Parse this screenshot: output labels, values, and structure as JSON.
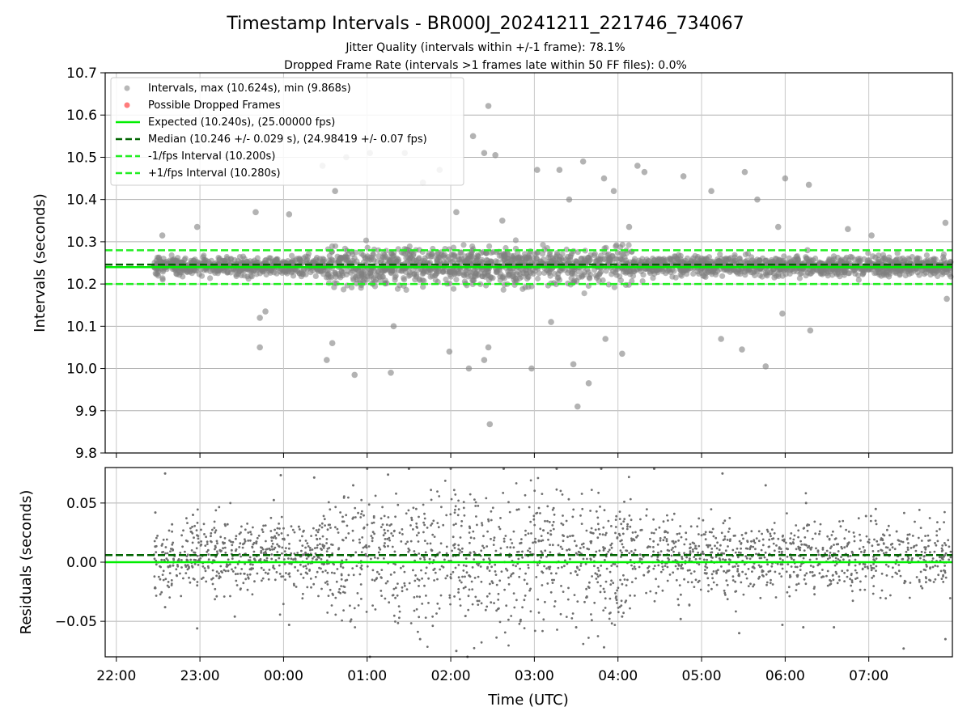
{
  "chart_data": [
    {
      "type": "scatter",
      "title": "Timestamp Intervals - BR000J_20241211_221746_734067",
      "subtitle_lines": [
        "Jitter Quality (intervals within +/-1 frame): 78.1%",
        "Dropped Frame Rate (intervals >1 frames late within 50 FF files): 0.0%"
      ],
      "ylabel": "Intervals (seconds)",
      "ylim": [
        9.8,
        10.7
      ],
      "yticks": [
        "9.8",
        "9.9",
        "10.0",
        "10.1",
        "10.2",
        "10.3",
        "10.4",
        "10.5",
        "10.6",
        "10.7"
      ],
      "grid": true,
      "legend_position": "top-left",
      "legend": [
        "Intervals, max (10.624s), min (9.868s)",
        "Possible Dropped Frames",
        "Expected (10.240s), (25.00000 fps)",
        "Median (10.246 +/- 0.029 s), (24.98419 +/- 0.07 fps)",
        "-1/fps Interval (10.200s)",
        "+1/fps Interval (10.280s)"
      ],
      "reference_lines": [
        {
          "name": "Expected",
          "y": 10.24,
          "color": "#00ee00",
          "style": "solid"
        },
        {
          "name": "Median",
          "y": 10.246,
          "color": "#006400",
          "style": "dashed"
        },
        {
          "name": "-1/fps Interval",
          "y": 10.2,
          "color": "#22ee22",
          "style": "dashed"
        },
        {
          "name": "+1/fps Interval",
          "y": 10.28,
          "color": "#22ee22",
          "style": "dashed"
        }
      ],
      "x_time_range_utc": [
        "2024-12-11T22:27",
        "2024-12-12T07:59"
      ],
      "points": [
        [
          "22:33",
          10.315
        ],
        [
          "22:58",
          10.335
        ],
        [
          "23:40",
          10.37
        ],
        [
          "23:43",
          10.05
        ],
        [
          "23:43",
          10.12
        ],
        [
          "23:47",
          10.135
        ],
        [
          "00:04",
          10.365
        ],
        [
          "00:28",
          10.48
        ],
        [
          "00:31",
          10.02
        ],
        [
          "00:35",
          10.06
        ],
        [
          "00:37",
          10.42
        ],
        [
          "00:45",
          10.5
        ],
        [
          "00:51",
          9.985
        ],
        [
          "01:02",
          10.51
        ],
        [
          "01:17",
          9.99
        ],
        [
          "01:19",
          10.1
        ],
        [
          "01:27",
          10.51
        ],
        [
          "01:40",
          10.44
        ],
        [
          "01:52",
          10.47
        ],
        [
          "01:59",
          10.04
        ],
        [
          "02:04",
          10.37
        ],
        [
          "02:13",
          10.0
        ],
        [
          "02:16",
          10.55
        ],
        [
          "02:24",
          10.02
        ],
        [
          "02:24",
          10.51
        ],
        [
          "02:27",
          10.05
        ],
        [
          "02:27",
          10.6215
        ],
        [
          "02:28",
          9.868
        ],
        [
          "02:32",
          10.505
        ],
        [
          "02:37",
          10.35
        ],
        [
          "02:58",
          10.0
        ],
        [
          "03:02",
          10.47
        ],
        [
          "03:12",
          10.11
        ],
        [
          "03:18",
          10.47
        ],
        [
          "03:25",
          10.4
        ],
        [
          "03:28",
          10.01
        ],
        [
          "03:31",
          9.91
        ],
        [
          "03:35",
          10.49
        ],
        [
          "03:39",
          9.965
        ],
        [
          "03:50",
          10.45
        ],
        [
          "03:51",
          10.07
        ],
        [
          "03:57",
          10.42
        ],
        [
          "04:03",
          10.035
        ],
        [
          "04:08",
          10.335
        ],
        [
          "04:14",
          10.48
        ],
        [
          "04:19",
          10.465
        ],
        [
          "04:47",
          10.455
        ],
        [
          "05:07",
          10.42
        ],
        [
          "05:14",
          10.07
        ],
        [
          "05:29",
          10.045
        ],
        [
          "05:31",
          10.465
        ],
        [
          "05:40",
          10.4
        ],
        [
          "05:46",
          10.005
        ],
        [
          "05:55",
          10.335
        ],
        [
          "05:58",
          10.13
        ],
        [
          "06:00",
          10.45
        ],
        [
          "06:16",
          10.28
        ],
        [
          "06:17",
          10.435
        ],
        [
          "06:18",
          10.09
        ],
        [
          "06:45",
          10.33
        ],
        [
          "07:02",
          10.315
        ],
        [
          "07:24",
          10.235
        ],
        [
          "07:55",
          10.345
        ],
        [
          "07:56",
          10.165
        ]
      ],
      "bulk_band_description": "dense points between about 10.18 and 10.30 across the whole time span"
    },
    {
      "type": "scatter",
      "title": "",
      "ylabel": "Residuals (seconds)",
      "xlabel": "Time (UTC)",
      "ylim": [
        -0.08,
        0.08
      ],
      "yticks": [
        "−0.05",
        "0.00",
        "0.05"
      ],
      "xticks": [
        "22:00",
        "23:00",
        "00:00",
        "01:00",
        "02:00",
        "03:00",
        "04:00",
        "05:00",
        "06:00",
        "07:00"
      ],
      "grid": true,
      "reference_lines": [
        {
          "name": "Expected",
          "y": 0.0,
          "color": "#00ee00",
          "style": "solid"
        },
        {
          "name": "Median",
          "y": 0.006,
          "color": "#006400",
          "style": "dashed"
        }
      ],
      "points": [
        [
          "22:28",
          0.042
        ],
        [
          "22:28",
          -0.022
        ],
        [
          "22:35",
          0.075
        ],
        [
          "22:35",
          -0.038
        ],
        [
          "22:40",
          0.032
        ],
        [
          "22:55",
          0.04
        ],
        [
          "22:58",
          -0.056
        ],
        [
          "23:18",
          0.032
        ],
        [
          "23:25",
          -0.046
        ],
        [
          "23:53",
          0.0525
        ],
        [
          "23:58",
          0.0735
        ],
        [
          "00:04",
          -0.053
        ],
        [
          "00:11",
          0.03
        ],
        [
          "00:22",
          0.0715
        ],
        [
          "00:48",
          -0.05
        ],
        [
          "00:50",
          0.065
        ],
        [
          "01:00",
          0.079
        ],
        [
          "01:02",
          -0.08
        ],
        [
          "01:15",
          0.074
        ],
        [
          "01:30",
          0.079
        ],
        [
          "01:38",
          -0.065
        ],
        [
          "02:00",
          0.079
        ],
        [
          "02:04",
          -0.075
        ],
        [
          "02:12",
          -0.08
        ],
        [
          "02:38",
          0.079
        ],
        [
          "02:50",
          -0.05
        ],
        [
          "03:16",
          0.079
        ],
        [
          "03:30",
          -0.055
        ],
        [
          "03:48",
          0.079
        ],
        [
          "03:50",
          -0.072
        ],
        [
          "04:03",
          -0.046
        ],
        [
          "04:26",
          0.079
        ],
        [
          "04:45",
          -0.048
        ],
        [
          "05:15",
          0.075
        ],
        [
          "05:27",
          -0.06
        ],
        [
          "05:46",
          0.065
        ],
        [
          "05:58",
          -0.053
        ],
        [
          "06:15",
          0.05
        ],
        [
          "06:13",
          -0.055
        ],
        [
          "06:35",
          -0.055
        ],
        [
          "06:58",
          0.039
        ],
        [
          "07:05",
          0.045
        ],
        [
          "07:20",
          0.026
        ],
        [
          "07:25",
          -0.073
        ],
        [
          "07:55",
          -0.065
        ]
      ]
    }
  ]
}
